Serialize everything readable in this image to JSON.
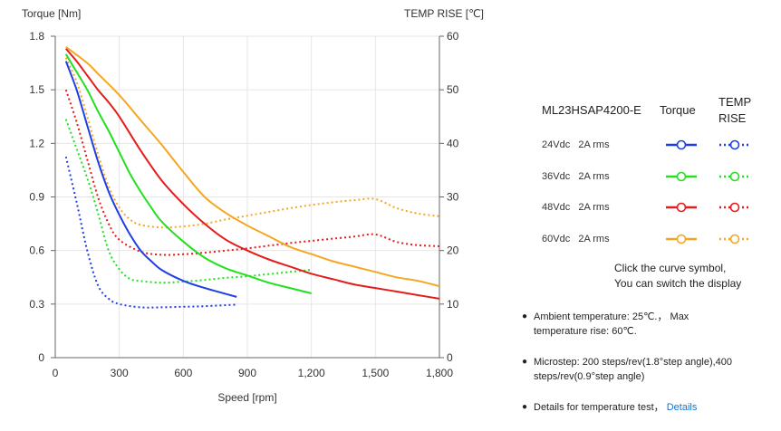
{
  "chart_data": {
    "type": "line",
    "y_left_label": "Torque  [Nm]",
    "y_right_label": "TEMP RISE [℃]",
    "xlabel": "Speed [rpm]",
    "xlim": [
      0,
      1800
    ],
    "ylim_left": [
      0,
      1.8
    ],
    "ylim_right": [
      0,
      60
    ],
    "x_ticks": [
      "0",
      "300",
      "600",
      "900",
      "1,200",
      "1,500",
      "1,800"
    ],
    "y_left_ticks": [
      "0",
      "0.3",
      "0.6",
      "0.9",
      "1.2",
      "1.5",
      "1.8"
    ],
    "y_right_ticks": [
      "0",
      "10",
      "20",
      "30",
      "40",
      "50",
      "60"
    ],
    "torque_series": [
      {
        "voltage": "24Vdc",
        "color": "#1f3fe6",
        "points": [
          [
            50,
            1.66
          ],
          [
            100,
            1.5
          ],
          [
            150,
            1.3
          ],
          [
            200,
            1.1
          ],
          [
            250,
            0.93
          ],
          [
            300,
            0.8
          ],
          [
            350,
            0.69
          ],
          [
            400,
            0.6
          ],
          [
            450,
            0.54
          ],
          [
            500,
            0.49
          ],
          [
            600,
            0.43
          ],
          [
            700,
            0.39
          ],
          [
            850,
            0.34
          ]
        ]
      },
      {
        "voltage": "36Vdc",
        "color": "#22e01e",
        "points": [
          [
            50,
            1.7
          ],
          [
            100,
            1.6
          ],
          [
            150,
            1.5
          ],
          [
            200,
            1.38
          ],
          [
            250,
            1.27
          ],
          [
            300,
            1.15
          ],
          [
            350,
            1.03
          ],
          [
            400,
            0.93
          ],
          [
            450,
            0.84
          ],
          [
            500,
            0.76
          ],
          [
            600,
            0.65
          ],
          [
            700,
            0.56
          ],
          [
            800,
            0.5
          ],
          [
            900,
            0.46
          ],
          [
            1000,
            0.42
          ],
          [
            1100,
            0.39
          ],
          [
            1200,
            0.36
          ]
        ]
      },
      {
        "voltage": "48Vdc",
        "color": "#e51c1c",
        "points": [
          [
            50,
            1.73
          ],
          [
            100,
            1.66
          ],
          [
            150,
            1.58
          ],
          [
            200,
            1.5
          ],
          [
            250,
            1.43
          ],
          [
            300,
            1.35
          ],
          [
            400,
            1.16
          ],
          [
            500,
            0.99
          ],
          [
            600,
            0.86
          ],
          [
            700,
            0.75
          ],
          [
            800,
            0.66
          ],
          [
            900,
            0.6
          ],
          [
            1000,
            0.55
          ],
          [
            1100,
            0.51
          ],
          [
            1200,
            0.47
          ],
          [
            1300,
            0.44
          ],
          [
            1400,
            0.41
          ],
          [
            1500,
            0.39
          ],
          [
            1600,
            0.37
          ],
          [
            1700,
            0.35
          ],
          [
            1800,
            0.33
          ]
        ]
      },
      {
        "voltage": "60Vdc",
        "color": "#f5a623",
        "points": [
          [
            50,
            1.74
          ],
          [
            150,
            1.65
          ],
          [
            200,
            1.59
          ],
          [
            300,
            1.47
          ],
          [
            400,
            1.33
          ],
          [
            500,
            1.19
          ],
          [
            600,
            1.04
          ],
          [
            700,
            0.9
          ],
          [
            800,
            0.81
          ],
          [
            900,
            0.74
          ],
          [
            1000,
            0.68
          ],
          [
            1100,
            0.62
          ],
          [
            1200,
            0.58
          ],
          [
            1300,
            0.54
          ],
          [
            1400,
            0.51
          ],
          [
            1500,
            0.48
          ],
          [
            1600,
            0.45
          ],
          [
            1700,
            0.43
          ],
          [
            1800,
            0.4
          ]
        ]
      }
    ],
    "temp_series": [
      {
        "voltage": "24Vdc",
        "color": "#1f3fe6",
        "points": [
          [
            50,
            37.5
          ],
          [
            100,
            29
          ],
          [
            150,
            20
          ],
          [
            200,
            13.5
          ],
          [
            250,
            11
          ],
          [
            300,
            10
          ],
          [
            400,
            9.4
          ],
          [
            500,
            9.4
          ],
          [
            600,
            9.5
          ],
          [
            700,
            9.6
          ],
          [
            850,
            9.9
          ]
        ]
      },
      {
        "voltage": "36Vdc",
        "color": "#22e01e",
        "points": [
          [
            50,
            44.5
          ],
          [
            100,
            39
          ],
          [
            150,
            33.5
          ],
          [
            200,
            27
          ],
          [
            250,
            20
          ],
          [
            300,
            16.5
          ],
          [
            350,
            14.7
          ],
          [
            400,
            14.3
          ],
          [
            500,
            14
          ],
          [
            600,
            14.2
          ],
          [
            700,
            14.5
          ],
          [
            800,
            14.9
          ],
          [
            900,
            15.2
          ],
          [
            1000,
            15.6
          ],
          [
            1100,
            16
          ],
          [
            1200,
            16.4
          ]
        ]
      },
      {
        "voltage": "48Vdc",
        "color": "#e51c1c",
        "points": [
          [
            50,
            50
          ],
          [
            100,
            44
          ],
          [
            150,
            37
          ],
          [
            200,
            30
          ],
          [
            250,
            25
          ],
          [
            300,
            22
          ],
          [
            400,
            19.8
          ],
          [
            500,
            19.2
          ],
          [
            600,
            19.3
          ],
          [
            700,
            19.6
          ],
          [
            800,
            20
          ],
          [
            900,
            20.4
          ],
          [
            1000,
            20.9
          ],
          [
            1100,
            21.4
          ],
          [
            1200,
            21.8
          ],
          [
            1300,
            22.2
          ],
          [
            1400,
            22.6
          ],
          [
            1500,
            23
          ],
          [
            1600,
            21.6
          ],
          [
            1700,
            21
          ],
          [
            1800,
            20.8
          ]
        ]
      },
      {
        "voltage": "60Vdc",
        "color": "#f5a623",
        "points": [
          [
            50,
            56
          ],
          [
            100,
            51.5
          ],
          [
            150,
            45
          ],
          [
            200,
            38
          ],
          [
            250,
            32
          ],
          [
            300,
            28
          ],
          [
            350,
            25.8
          ],
          [
            400,
            24.8
          ],
          [
            500,
            24.3
          ],
          [
            600,
            24.5
          ],
          [
            700,
            25
          ],
          [
            800,
            25.8
          ],
          [
            900,
            26.5
          ],
          [
            1000,
            27.2
          ],
          [
            1100,
            27.9
          ],
          [
            1200,
            28.5
          ],
          [
            1300,
            29
          ],
          [
            1400,
            29.4
          ],
          [
            1500,
            29.6
          ],
          [
            1600,
            27.9
          ],
          [
            1700,
            26.9
          ],
          [
            1800,
            26.4
          ]
        ]
      }
    ]
  },
  "legend": {
    "model": "ML23HSAP4200-E",
    "torque_header": "Torque",
    "temp_header": "TEMP RISE",
    "rows": [
      {
        "label": "24Vdc   2A rms",
        "color": "#1f3fe6"
      },
      {
        "label": "36Vdc   2A rms",
        "color": "#22e01e"
      },
      {
        "label": "48Vdc   2A rms",
        "color": "#e51c1c"
      },
      {
        "label": "60Vdc   2A rms",
        "color": "#f5a623"
      }
    ],
    "hint_line1": "Click the curve symbol,",
    "hint_line2": "You can switch the display"
  },
  "notes": {
    "ambient": "Ambient temperature: 25℃.， Max temperature rise: 60℃.",
    "microstep": "Microstep: 200 steps/rev(1.8°step angle),400 steps/rev(0.9°step angle)",
    "details_text": "Details for temperature test，",
    "details_link": "Details"
  }
}
